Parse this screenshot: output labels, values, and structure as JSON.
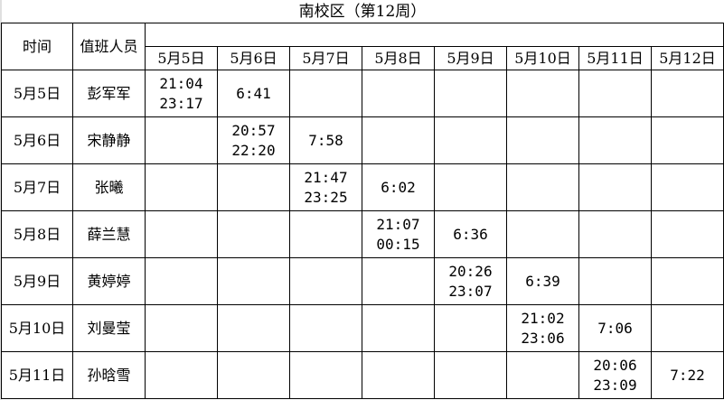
{
  "title": "南校区（第12周）",
  "headers": {
    "time": "时间",
    "staff": "值班人员"
  },
  "dates": [
    "5月5日",
    "5月6日",
    "5月7日",
    "5月8日",
    "5月9日",
    "5月10日",
    "5月11日",
    "5月12日"
  ],
  "rows": [
    {
      "date": "5月5日",
      "name": "彭军军",
      "start": "21:04",
      "end": "23:17",
      "morning": "6:41"
    },
    {
      "date": "5月6日",
      "name": "宋静静",
      "start": "20:57",
      "end": "22:20",
      "morning": "7:58"
    },
    {
      "date": "5月7日",
      "name": "张曦",
      "start": "21:47",
      "end": "23:25",
      "morning": "6:02"
    },
    {
      "date": "5月8日",
      "name": "薛兰慧",
      "start": "21:07",
      "end": "00:15",
      "morning": "6:36"
    },
    {
      "date": "5月9日",
      "name": "黄婷婷",
      "start": "20:26",
      "end": "23:07",
      "morning": "6:39"
    },
    {
      "date": "5月10日",
      "name": "刘曼莹",
      "start": "21:02",
      "end": "23:06",
      "morning": "7:06"
    },
    {
      "date": "5月11日",
      "name": "孙晗雪",
      "start": "20:06",
      "end": "23:09",
      "morning": "7:22"
    }
  ]
}
